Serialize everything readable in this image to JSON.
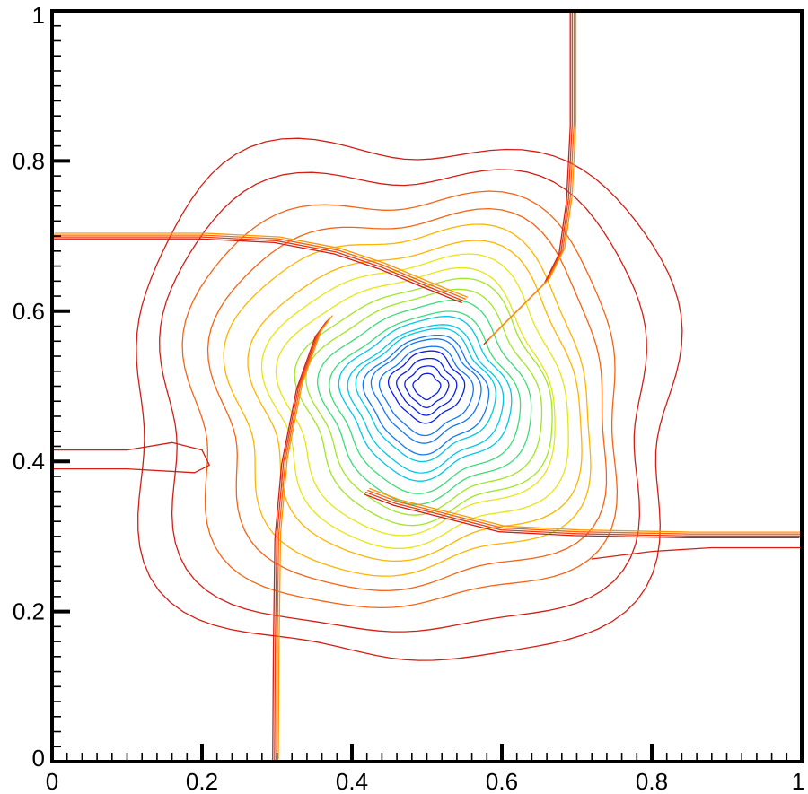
{
  "chart_data": {
    "type": "contour",
    "title": "",
    "xlabel": "",
    "ylabel": "",
    "xlim": [
      0,
      1
    ],
    "ylim": [
      0,
      1
    ],
    "grid": false,
    "x_ticks": [
      {
        "value": 0,
        "label": "0"
      },
      {
        "value": 0.2,
        "label": "0.2"
      },
      {
        "value": 0.4,
        "label": "0.4"
      },
      {
        "value": 0.6,
        "label": "0.6"
      },
      {
        "value": 0.8,
        "label": "0.8"
      },
      {
        "value": 1,
        "label": "1"
      }
    ],
    "y_ticks": [
      {
        "value": 0,
        "label": "0"
      },
      {
        "value": 0.2,
        "label": "0.2"
      },
      {
        "value": 0.4,
        "label": "0.4"
      },
      {
        "value": 0.6,
        "label": "0.6"
      },
      {
        "value": 0.8,
        "label": "0.8"
      },
      {
        "value": 1,
        "label": "1"
      }
    ],
    "colormap": [
      "#0a1ee6",
      "#1478f0",
      "#00c8e6",
      "#3cdc78",
      "#a0e628",
      "#e6e614",
      "#ffb400",
      "#f56414",
      "#d21e14"
    ],
    "shock_lines": [
      {
        "name": "vertical-shock-left",
        "points": [
          [
            0.298,
            0
          ],
          [
            0.299,
            0.15
          ],
          [
            0.301,
            0.3
          ],
          [
            0.31,
            0.4
          ],
          [
            0.33,
            0.5
          ],
          [
            0.355,
            0.57
          ],
          [
            0.37,
            0.59
          ]
        ]
      },
      {
        "name": "vertical-shock-top",
        "points": [
          [
            0.695,
            1
          ],
          [
            0.695,
            0.85
          ],
          [
            0.69,
            0.75
          ],
          [
            0.68,
            0.68
          ],
          [
            0.66,
            0.64
          ],
          [
            0.62,
            0.6
          ],
          [
            0.58,
            0.56
          ]
        ]
      },
      {
        "name": "horizontal-shock-left",
        "points": [
          [
            0,
            0.7
          ],
          [
            0.2,
            0.7
          ],
          [
            0.3,
            0.695
          ],
          [
            0.38,
            0.68
          ],
          [
            0.44,
            0.66
          ],
          [
            0.5,
            0.635
          ],
          [
            0.55,
            0.615
          ]
        ]
      },
      {
        "name": "horizontal-shock-right",
        "points": [
          [
            1,
            0.302
          ],
          [
            0.85,
            0.302
          ],
          [
            0.7,
            0.305
          ],
          [
            0.6,
            0.31
          ],
          [
            0.52,
            0.33
          ],
          [
            0.46,
            0.345
          ],
          [
            0.42,
            0.36
          ]
        ]
      }
    ],
    "contours": [
      {
        "name": "contour-ring-1",
        "cx": 0.47,
        "cy": 0.48,
        "r": 0.38,
        "color_index": 8
      },
      {
        "name": "contour-ring-2",
        "cx": 0.47,
        "cy": 0.48,
        "r": 0.34,
        "color_index": 8
      },
      {
        "name": "contour-ring-3",
        "cx": 0.47,
        "cy": 0.48,
        "r": 0.3,
        "color_index": 7
      },
      {
        "name": "contour-ring-4",
        "cx": 0.48,
        "cy": 0.48,
        "r": 0.27,
        "color_index": 7
      },
      {
        "name": "contour-ring-5",
        "cx": 0.48,
        "cy": 0.48,
        "r": 0.245,
        "color_index": 6
      },
      {
        "name": "contour-ring-6",
        "cx": 0.49,
        "cy": 0.48,
        "r": 0.22,
        "color_index": 6
      },
      {
        "name": "contour-ring-7",
        "cx": 0.49,
        "cy": 0.48,
        "r": 0.2,
        "color_index": 5
      },
      {
        "name": "contour-ring-8",
        "cx": 0.49,
        "cy": 0.48,
        "r": 0.18,
        "color_index": 5
      },
      {
        "name": "contour-ring-9",
        "cx": 0.5,
        "cy": 0.48,
        "r": 0.165,
        "color_index": 4
      },
      {
        "name": "contour-ring-10",
        "cx": 0.5,
        "cy": 0.48,
        "r": 0.15,
        "color_index": 4
      },
      {
        "name": "contour-ring-11",
        "cx": 0.5,
        "cy": 0.48,
        "r": 0.135,
        "color_index": 3
      },
      {
        "name": "contour-ring-12",
        "cx": 0.5,
        "cy": 0.48,
        "r": 0.12,
        "color_index": 3
      },
      {
        "name": "contour-ring-13",
        "cx": 0.5,
        "cy": 0.485,
        "r": 0.108,
        "color_index": 2
      },
      {
        "name": "contour-ring-14",
        "cx": 0.5,
        "cy": 0.485,
        "r": 0.097,
        "color_index": 2
      },
      {
        "name": "contour-ring-15",
        "cx": 0.5,
        "cy": 0.49,
        "r": 0.087,
        "color_index": 2
      },
      {
        "name": "contour-ring-16",
        "cx": 0.5,
        "cy": 0.49,
        "r": 0.078,
        "color_index": 1
      },
      {
        "name": "contour-ring-17",
        "cx": 0.5,
        "cy": 0.495,
        "r": 0.068,
        "color_index": 1
      },
      {
        "name": "contour-ring-18",
        "cx": 0.5,
        "cy": 0.495,
        "r": 0.058,
        "color_index": 1
      },
      {
        "name": "contour-ring-19",
        "cx": 0.5,
        "cy": 0.5,
        "r": 0.047,
        "color_index": 0
      },
      {
        "name": "contour-ring-20",
        "cx": 0.5,
        "cy": 0.5,
        "r": 0.037,
        "color_index": 0
      },
      {
        "name": "contour-ring-21",
        "cx": 0.5,
        "cy": 0.5,
        "r": 0.027,
        "color_index": 0
      },
      {
        "name": "contour-ring-22",
        "cx": 0.5,
        "cy": 0.5,
        "r": 0.017,
        "color_index": 0
      }
    ],
    "extra_contours": [
      {
        "name": "contour-left-tongue",
        "points": [
          [
            0,
            0.415
          ],
          [
            0.1,
            0.415
          ],
          [
            0.16,
            0.425
          ],
          [
            0.2,
            0.415
          ],
          [
            0.21,
            0.395
          ],
          [
            0.19,
            0.385
          ],
          [
            0.1,
            0.39
          ],
          [
            0,
            0.39
          ]
        ],
        "color_index": 8
      },
      {
        "name": "contour-right-tail",
        "points": [
          [
            1,
            0.285
          ],
          [
            0.95,
            0.285
          ],
          [
            0.88,
            0.285
          ],
          [
            0.8,
            0.28
          ],
          [
            0.72,
            0.27
          ]
        ],
        "color_index": 8
      }
    ]
  }
}
